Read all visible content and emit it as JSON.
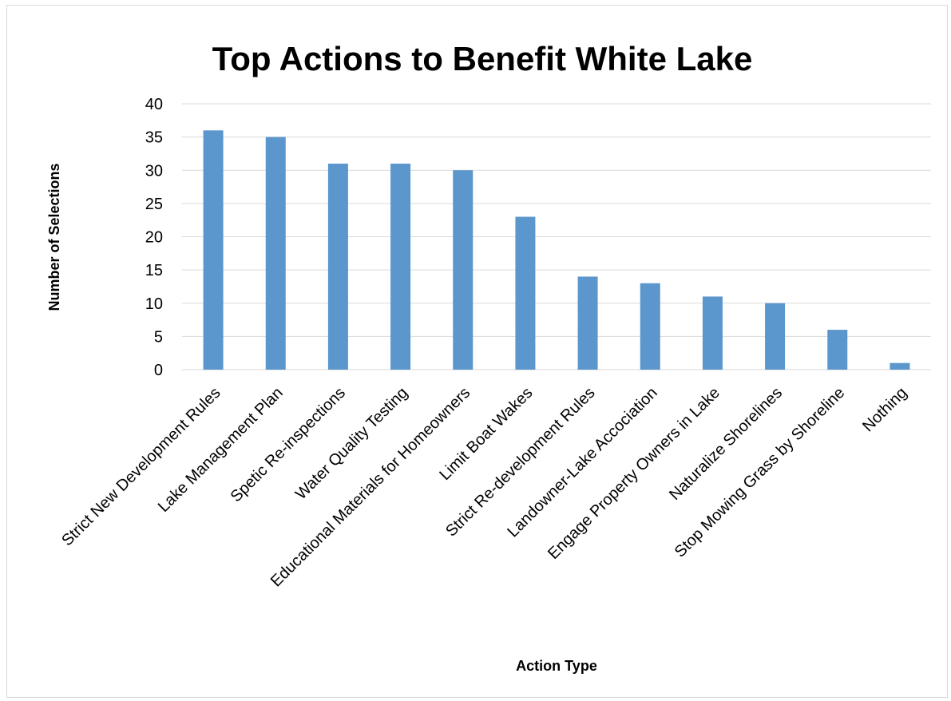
{
  "chart_data": {
    "type": "bar",
    "title": "Top Actions to Benefit White Lake",
    "xlabel": "Action Type",
    "ylabel": "Number of Selections",
    "categories": [
      "Strict New Development Rules",
      "Lake Management Plan",
      "Spetic Re-inspections",
      "Water Quality Testing",
      "Educational Materials for Homeowners",
      "Limit Boat Wakes",
      "Strict Re-development Rules",
      "Landowner-Lake Accociation",
      "Engage Property Owners in Lake",
      "Naturalize Shorelines",
      "Stop Mowing Grass by Shoreline",
      "Nothing"
    ],
    "values": [
      36,
      35,
      31,
      31,
      30,
      23,
      14,
      13,
      11,
      10,
      6,
      1
    ],
    "ylim": [
      0,
      40
    ],
    "yticks": [
      0,
      5,
      10,
      15,
      20,
      25,
      30,
      35,
      40
    ],
    "grid": true,
    "legend": "none",
    "bar_color": "#5b96cc"
  }
}
